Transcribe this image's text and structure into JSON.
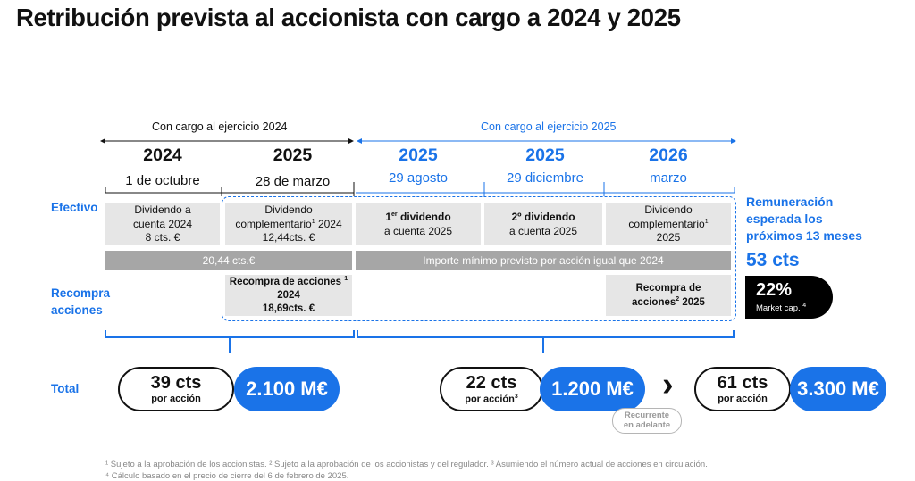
{
  "title": "Retribución prevista al accionista con cargo a 2024 y 2025",
  "headers": {
    "h2024": "Con cargo al ejercicio 2024",
    "h2025": "Con cargo al ejercicio 2025"
  },
  "columns": [
    {
      "year": "2024",
      "date": "1 de octubre"
    },
    {
      "year": "2025",
      "date": "28 de marzo"
    },
    {
      "year": "2025",
      "date": "29 agosto"
    },
    {
      "year": "2025",
      "date": "29 diciembre"
    },
    {
      "year": "2026",
      "date": "marzo"
    }
  ],
  "rows": {
    "efectivo": "Efectivo",
    "recompra_l1": "Recompra",
    "recompra_l2": "acciones",
    "total": "Total"
  },
  "cells": {
    "c1_l1": "Dividendo a",
    "c1_l2": "cuenta 2024",
    "c1_l3": "8 cts. €",
    "c2_l1": "Dividendo",
    "c2_l2": "complementario",
    "c2_l2b": "2024",
    "c2_l3": "12,44cts. €",
    "c3_l1a": "1",
    "c3_l1sup": "er",
    "c3_l1b": " dividendo",
    "c3_l2": "a cuenta 2025",
    "c4_l1": "2º dividendo",
    "c4_l2": "a cuenta 2025",
    "c5_l1": "Dividendo",
    "c5_l2": "complementario",
    "c5_l3": "2025",
    "sup1": "1",
    "sup2": "2",
    "sup3": "3",
    "sup4": "4"
  },
  "bars": {
    "left": "20,44 cts.€",
    "right": "Importe mínimo previsto por acción igual que 2024"
  },
  "recompra": {
    "b1_l1": "Recompra de acciones",
    "b1_l2": "2024",
    "b1_l3": "18,69cts. €",
    "b2_l1": "Recompra de",
    "b2_l2": "acciones",
    "b2_l2b": " 2025"
  },
  "remuneracion": {
    "l1": "Remuneración",
    "l2": "esperada los",
    "l3": "próximos 13 meses",
    "value": "53 cts",
    "pct": "22%",
    "pct_label": "Market cap."
  },
  "totals": [
    {
      "big": "39 cts",
      "small": "por acción",
      "amount": "2.100 M€"
    },
    {
      "big": "22 cts",
      "small": "por acción",
      "amount": "1.200 M€"
    },
    {
      "big": "61 cts",
      "small": "por acción",
      "amount": "3.300 M€"
    }
  ],
  "recurrente_l1": "Recurrente",
  "recurrente_l2": "en adelante",
  "chevron": "›",
  "footnotes": {
    "line1": "¹ Sujeto a la aprobación de los accionistas. ² Sujeto a la aprobación de los accionistas y del regulador. ³ Asumiendo el número actual de acciones en circulación.",
    "line2": "⁴ Cálculo basado en el precio de cierre del 6 de febrero de 2025."
  },
  "colors": {
    "accent": "#1a73e8",
    "grey_box": "#e6e6e6",
    "grey_bar": "#a6a6a6",
    "black": "#000000"
  }
}
